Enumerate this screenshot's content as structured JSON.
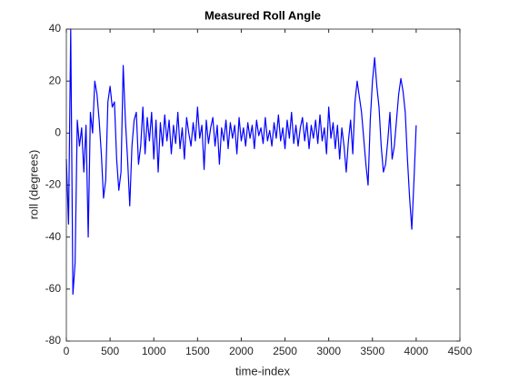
{
  "chart_data": {
    "type": "line",
    "title": "Measured Roll Angle",
    "x_label": "time-index",
    "y_label": "roll (degrees)",
    "xlim": [
      0,
      4500
    ],
    "xticks": [
      0,
      500,
      1000,
      1500,
      2000,
      2500,
      3000,
      3500,
      4000,
      4500
    ],
    "ylim": [
      -80,
      40
    ],
    "yticks": [
      -80,
      -60,
      -40,
      -20,
      0,
      20,
      40
    ],
    "grid": false,
    "x": [
      0,
      25,
      50,
      75,
      100,
      125,
      150,
      175,
      200,
      225,
      250,
      275,
      300,
      325,
      350,
      375,
      400,
      425,
      450,
      475,
      500,
      525,
      550,
      575,
      600,
      625,
      650,
      675,
      700,
      725,
      750,
      775,
      800,
      825,
      850,
      875,
      900,
      925,
      950,
      975,
      1000,
      1025,
      1050,
      1075,
      1100,
      1125,
      1150,
      1175,
      1200,
      1225,
      1250,
      1275,
      1300,
      1325,
      1350,
      1375,
      1400,
      1425,
      1450,
      1475,
      1500,
      1525,
      1550,
      1575,
      1600,
      1625,
      1650,
      1675,
      1700,
      1725,
      1750,
      1775,
      1800,
      1825,
      1850,
      1875,
      1900,
      1925,
      1950,
      1975,
      2000,
      2025,
      2050,
      2075,
      2100,
      2125,
      2150,
      2175,
      2200,
      2225,
      2250,
      2275,
      2300,
      2325,
      2350,
      2375,
      2400,
      2425,
      2450,
      2475,
      2500,
      2525,
      2550,
      2575,
      2600,
      2625,
      2650,
      2675,
      2700,
      2725,
      2750,
      2775,
      2800,
      2825,
      2850,
      2875,
      2900,
      2925,
      2950,
      2975,
      3000,
      3025,
      3050,
      3075,
      3100,
      3125,
      3150,
      3175,
      3200,
      3225,
      3250,
      3275,
      3300,
      3325,
      3350,
      3375,
      3400,
      3425,
      3450,
      3475,
      3500,
      3525,
      3550,
      3575,
      3600,
      3625,
      3650,
      3675,
      3700,
      3725,
      3750,
      3775,
      3800,
      3825,
      3850,
      3875,
      3900,
      3925,
      3950,
      3975,
      4000
    ],
    "series": [
      {
        "name": "roll",
        "color": "#0000ff",
        "values": [
          -10,
          -35,
          40,
          -62,
          -50,
          5,
          -5,
          2,
          -15,
          3,
          -40,
          8,
          0,
          20,
          15,
          5,
          -8,
          -25,
          -18,
          12,
          18,
          10,
          12,
          -10,
          -22,
          -15,
          26,
          5,
          -10,
          -28,
          -5,
          5,
          8,
          -12,
          -5,
          10,
          -8,
          6,
          -3,
          8,
          -10,
          5,
          -15,
          4,
          -5,
          7,
          -3,
          5,
          -8,
          3,
          -4,
          8,
          -6,
          2,
          -10,
          6,
          0,
          -5,
          4,
          -3,
          10,
          -2,
          3,
          -14,
          5,
          -4,
          2,
          6,
          -5,
          3,
          -12,
          2,
          -3,
          5,
          -6,
          4,
          -2,
          3,
          -8,
          6,
          -3,
          2,
          -5,
          4,
          -2,
          3,
          -6,
          5,
          -1,
          2,
          -4,
          6,
          -3,
          1,
          -5,
          4,
          -2,
          7,
          -3,
          2,
          -6,
          5,
          -2,
          8,
          -4,
          3,
          -5,
          2,
          6,
          -3,
          4,
          -6,
          3,
          -2,
          5,
          -4,
          7,
          -3,
          2,
          -8,
          10,
          -2,
          4,
          -6,
          3,
          -10,
          2,
          -5,
          -15,
          -3,
          5,
          -8,
          12,
          20,
          14,
          8,
          -2,
          -12,
          -20,
          5,
          20,
          29,
          18,
          10,
          -5,
          -15,
          -12,
          -3,
          8,
          -10,
          -5,
          5,
          15,
          21,
          16,
          8,
          -10,
          -25,
          -37,
          -18,
          3
        ]
      }
    ]
  }
}
